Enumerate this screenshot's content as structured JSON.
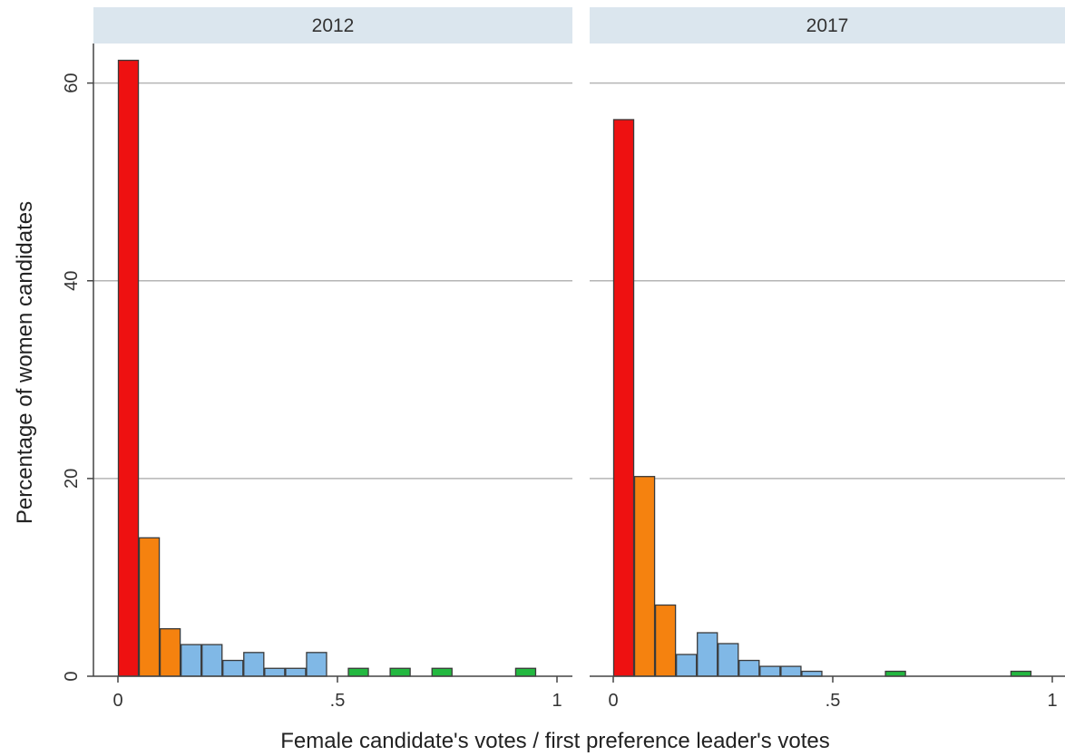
{
  "chart_data": {
    "type": "bar",
    "xlabel": "Female candidate's votes / first preference leader's votes",
    "ylabel": "Percentage of women candidates",
    "ylim": [
      0,
      64
    ],
    "xlim": [
      -0.06,
      1.02
    ],
    "yticks": [
      0,
      20,
      40,
      60
    ],
    "ytick_labels": [
      "0",
      "20",
      "40",
      "60"
    ],
    "xticks": [
      0,
      0.5,
      1
    ],
    "xtick_labels": [
      "0",
      ".5",
      "1"
    ],
    "grid": "horizontal",
    "bin_width": 0.0476,
    "colors": {
      "red": "#ee1111",
      "orange": "#f5820f",
      "blue": "#80b8e6",
      "green": "#23b840",
      "strip": "#dbe6ee",
      "grid": "#b5b5b5"
    },
    "panels": [
      {
        "title": "2012",
        "bins": [
          {
            "x": 0.0,
            "value": 62.3,
            "color": "red"
          },
          {
            "x": 0.0476,
            "value": 14.0,
            "color": "orange"
          },
          {
            "x": 0.0952,
            "value": 4.8,
            "color": "orange"
          },
          {
            "x": 0.1429,
            "value": 3.2,
            "color": "blue"
          },
          {
            "x": 0.1905,
            "value": 3.2,
            "color": "blue"
          },
          {
            "x": 0.2381,
            "value": 1.6,
            "color": "blue"
          },
          {
            "x": 0.2857,
            "value": 2.4,
            "color": "blue"
          },
          {
            "x": 0.3333,
            "value": 0.8,
            "color": "blue"
          },
          {
            "x": 0.381,
            "value": 0.8,
            "color": "blue"
          },
          {
            "x": 0.4286,
            "value": 2.4,
            "color": "blue"
          },
          {
            "x": 0.4762,
            "value": 0.0,
            "color": "blue"
          },
          {
            "x": 0.5238,
            "value": 0.8,
            "color": "green"
          },
          {
            "x": 0.5714,
            "value": 0.0,
            "color": "green"
          },
          {
            "x": 0.619,
            "value": 0.8,
            "color": "green"
          },
          {
            "x": 0.6667,
            "value": 0.0,
            "color": "green"
          },
          {
            "x": 0.7143,
            "value": 0.8,
            "color": "green"
          },
          {
            "x": 0.7619,
            "value": 0.0,
            "color": "green"
          },
          {
            "x": 0.8095,
            "value": 0.0,
            "color": "green"
          },
          {
            "x": 0.8571,
            "value": 0.0,
            "color": "green"
          },
          {
            "x": 0.9048,
            "value": 0.8,
            "color": "green"
          }
        ]
      },
      {
        "title": "2017",
        "bins": [
          {
            "x": 0.0,
            "value": 56.3,
            "color": "red"
          },
          {
            "x": 0.0476,
            "value": 20.2,
            "color": "orange"
          },
          {
            "x": 0.0952,
            "value": 7.2,
            "color": "orange"
          },
          {
            "x": 0.1429,
            "value": 2.2,
            "color": "blue"
          },
          {
            "x": 0.1905,
            "value": 4.4,
            "color": "blue"
          },
          {
            "x": 0.2381,
            "value": 3.3,
            "color": "blue"
          },
          {
            "x": 0.2857,
            "value": 1.6,
            "color": "blue"
          },
          {
            "x": 0.3333,
            "value": 1.0,
            "color": "blue"
          },
          {
            "x": 0.381,
            "value": 1.0,
            "color": "blue"
          },
          {
            "x": 0.4286,
            "value": 0.5,
            "color": "blue"
          },
          {
            "x": 0.619,
            "value": 0.5,
            "color": "green"
          },
          {
            "x": 0.9048,
            "value": 0.5,
            "color": "green"
          }
        ]
      }
    ]
  }
}
